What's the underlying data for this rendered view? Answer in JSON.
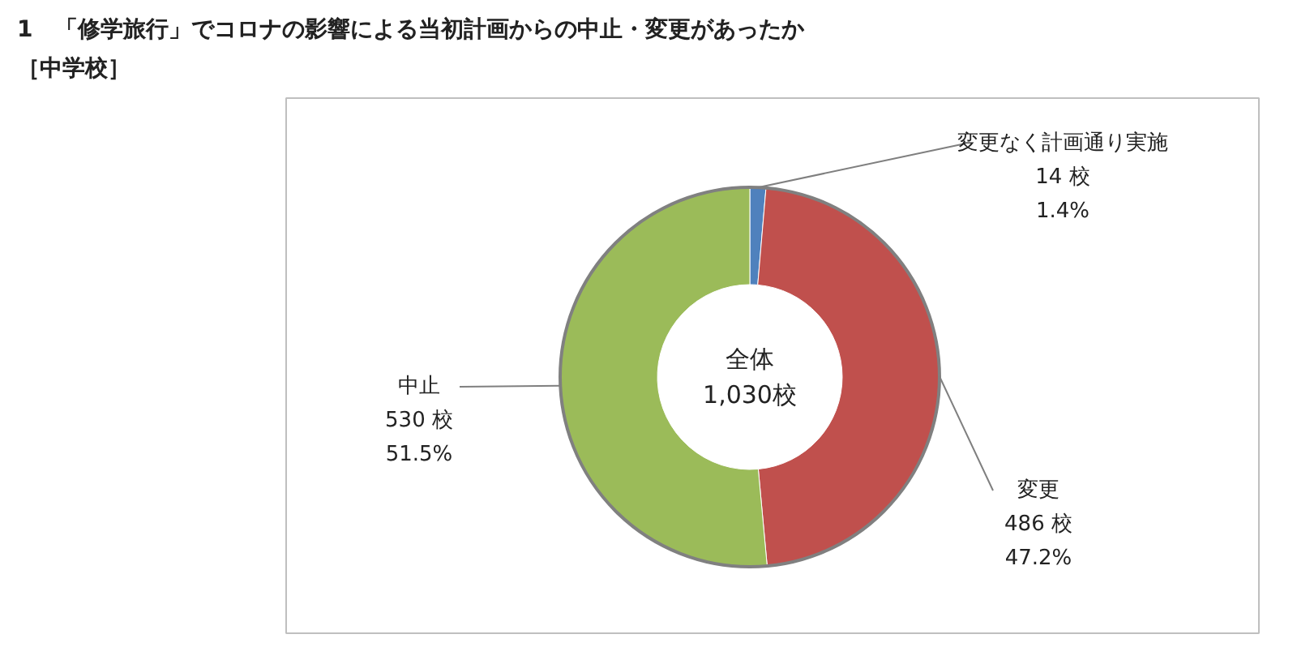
{
  "chart_data": {
    "type": "donut",
    "title": "1　「修学旅行」でコロナの影響による当初計画からの中止・変更があったか",
    "subtitle": "［中学校］",
    "categories": [
      "変更なく計画通り実施",
      "変更",
      "中止"
    ],
    "values": [
      14,
      486,
      530
    ],
    "colors": [
      "#4f81bd",
      "#c0504d",
      "#9bbb59"
    ],
    "value_labels": [
      "14 校\n1.4%",
      "486 校\n47.2%",
      "530 校\n51.5%"
    ],
    "annotations": [
      "全体\n1,030校"
    ]
  }
}
